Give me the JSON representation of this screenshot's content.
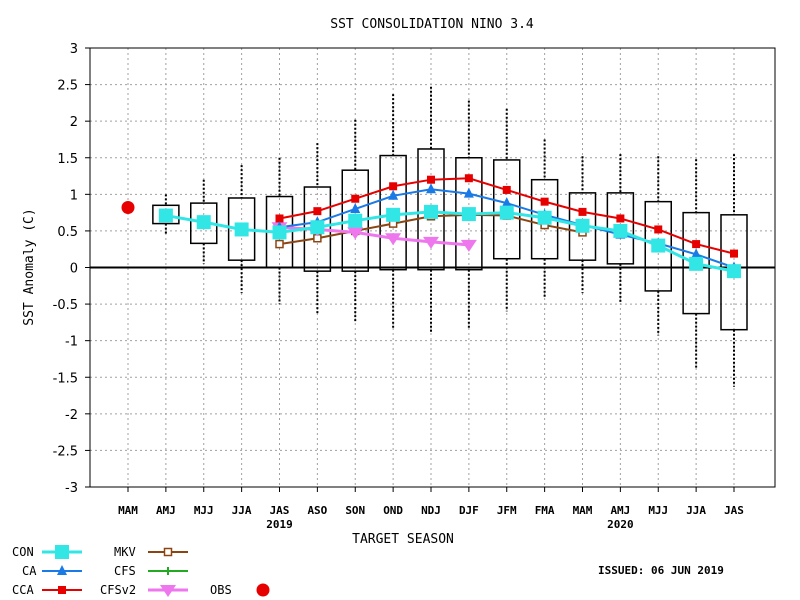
{
  "chart_data": {
    "type": "line",
    "title": "SST CONSOLIDATION NINO 3.4",
    "xlabel": "TARGET SEASON",
    "ylabel": "SST Anomaly (C)",
    "ylim": [
      -3,
      3
    ],
    "yticks": [
      3,
      2.5,
      2,
      1.5,
      1,
      0.5,
      0,
      -0.5,
      -1,
      -1.5,
      -2,
      -2.5,
      -3
    ],
    "grid": true,
    "categories": [
      "MAM",
      "AMJ",
      "MJJ",
      "JJA",
      "JAS",
      "ASO",
      "SON",
      "OND",
      "NDJ",
      "DJF",
      "JFM",
      "FMA",
      "MAM",
      "AMJ",
      "MJJ",
      "JJA",
      "JAS"
    ],
    "year_labels": [
      {
        "index": 4,
        "text": "2019"
      },
      {
        "index": 13,
        "text": "2020"
      }
    ],
    "issued": "ISSUED: 06 JUN 2019",
    "boxes": [
      null,
      {
        "low": 0.6,
        "high": 0.85,
        "wlow": 0.45,
        "whigh": 1.0
      },
      {
        "low": 0.33,
        "high": 0.88,
        "wlow": 0.05,
        "whigh": 1.2
      },
      {
        "low": 0.1,
        "high": 0.95,
        "wlow": -0.35,
        "whigh": 1.4
      },
      {
        "low": 0.0,
        "high": 0.97,
        "wlow": -0.5,
        "whigh": 1.5
      },
      {
        "low": -0.05,
        "high": 1.1,
        "wlow": -0.65,
        "whigh": 1.7
      },
      {
        "low": -0.05,
        "high": 1.33,
        "wlow": -0.75,
        "whigh": 2.02
      },
      {
        "low": -0.03,
        "high": 1.53,
        "wlow": -0.85,
        "whigh": 2.37
      },
      {
        "low": -0.03,
        "high": 1.62,
        "wlow": -0.9,
        "whigh": 2.47
      },
      {
        "low": -0.03,
        "high": 1.5,
        "wlow": -0.83,
        "whigh": 2.28
      },
      {
        "low": 0.12,
        "high": 1.47,
        "wlow": -0.6,
        "whigh": 2.17
      },
      {
        "low": 0.12,
        "high": 1.2,
        "wlow": -0.4,
        "whigh": 1.75
      },
      {
        "low": 0.1,
        "high": 1.02,
        "wlow": -0.35,
        "whigh": 1.52
      },
      {
        "low": 0.05,
        "high": 1.02,
        "wlow": -0.48,
        "whigh": 1.55
      },
      {
        "low": -0.32,
        "high": 0.9,
        "wlow": -0.93,
        "whigh": 1.52
      },
      {
        "low": -0.63,
        "high": 0.75,
        "wlow": -1.37,
        "whigh": 1.48
      },
      {
        "low": -0.85,
        "high": 0.72,
        "wlow": -1.63,
        "whigh": 1.55
      }
    ],
    "series": [
      {
        "name": "CON",
        "color": "#33e6e6",
        "marker": "square-large",
        "values": [
          null,
          0.71,
          0.62,
          0.52,
          0.48,
          0.55,
          0.64,
          0.72,
          0.76,
          0.73,
          0.75,
          0.68,
          0.57,
          0.5,
          0.3,
          0.05,
          -0.05
        ]
      },
      {
        "name": "CA",
        "color": "#1a7ae6",
        "marker": "triangle",
        "values": [
          null,
          null,
          null,
          null,
          0.55,
          0.62,
          0.8,
          0.98,
          1.07,
          1.01,
          0.88,
          0.72,
          0.58,
          0.45,
          0.33,
          0.18,
          0.0
        ]
      },
      {
        "name": "CCA",
        "color": "#e60000",
        "marker": "square",
        "values": [
          null,
          null,
          null,
          null,
          0.67,
          0.77,
          0.94,
          1.11,
          1.2,
          1.22,
          1.06,
          0.9,
          0.76,
          0.67,
          0.52,
          0.32,
          0.19
        ]
      },
      {
        "name": "MKV",
        "color": "#8b4513",
        "marker": "open-square",
        "values": [
          null,
          null,
          null,
          null,
          0.32,
          0.4,
          0.5,
          0.6,
          0.7,
          0.72,
          0.71,
          0.58,
          0.48,
          null,
          null,
          null,
          null
        ]
      },
      {
        "name": "CFS",
        "color": "#22aa22",
        "marker": "plus",
        "values": [
          null,
          null,
          null,
          null,
          null,
          null,
          null,
          null,
          null,
          null,
          null,
          null,
          null,
          null,
          null,
          null,
          null
        ]
      },
      {
        "name": "CFSv2",
        "color": "#ee77ee",
        "marker": "triangle-down",
        "values": [
          null,
          null,
          null,
          null,
          0.55,
          0.52,
          0.48,
          0.4,
          0.35,
          0.31,
          null,
          null,
          null,
          null,
          null,
          null,
          null
        ]
      },
      {
        "name": "OBS",
        "color": "#e60000",
        "marker": "circle",
        "values": [
          0.82,
          null,
          null,
          null,
          null,
          null,
          null,
          null,
          null,
          null,
          null,
          null,
          null,
          null,
          null,
          null,
          null
        ]
      }
    ]
  },
  "colors": {
    "grid": "#a0a0a0",
    "axis": "#000000",
    "box": "#000000"
  }
}
